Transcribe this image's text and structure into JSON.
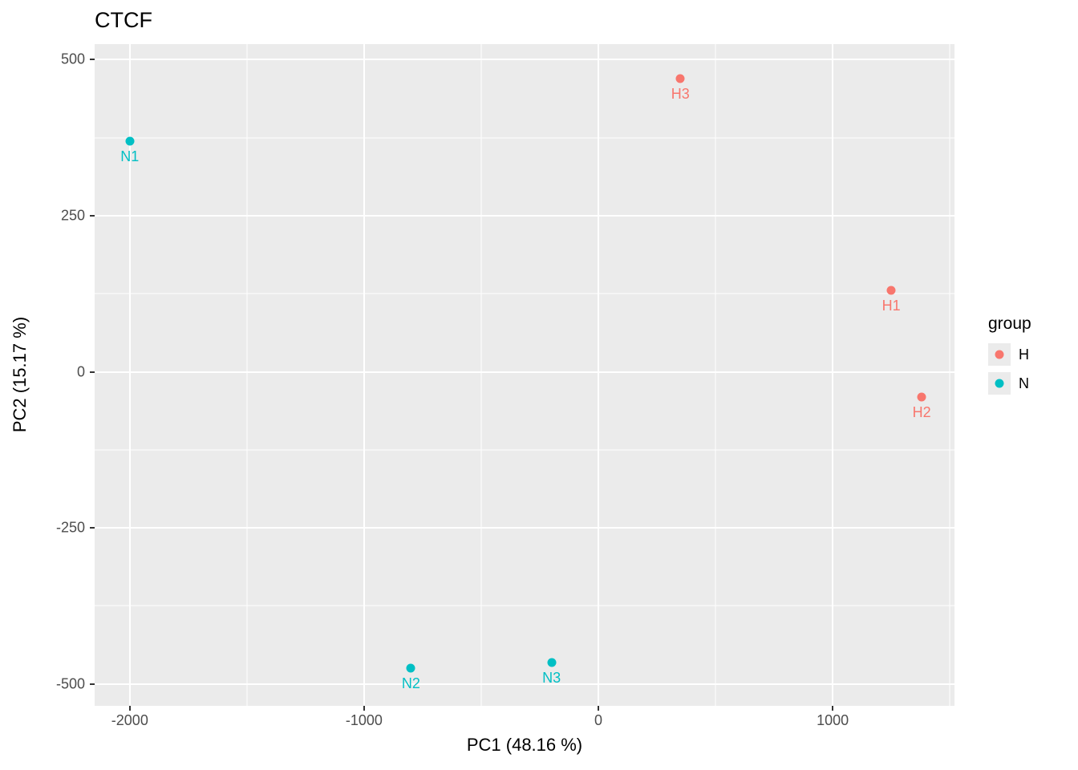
{
  "chart_data": {
    "type": "scatter",
    "title": "CTCF",
    "xlabel": "PC1 (48.16 %)",
    "ylabel": "PC2 (15.17 %)",
    "xlim": [
      -2150,
      1520
    ],
    "ylim": [
      -535,
      525
    ],
    "grid": true,
    "panel_background": "#EBEBEB",
    "gridline_color": "#FFFFFF",
    "x_ticks": [
      {
        "v": -2000,
        "label": "-2000"
      },
      {
        "v": -1000,
        "label": "-1000"
      },
      {
        "v": 0,
        "label": "0"
      },
      {
        "v": 1000,
        "label": "1000"
      }
    ],
    "y_ticks": [
      {
        "v": -500,
        "label": "-500"
      },
      {
        "v": -250,
        "label": "-250"
      },
      {
        "v": 0,
        "label": "0"
      },
      {
        "v": 250,
        "label": "250"
      },
      {
        "v": 500,
        "label": "500"
      }
    ],
    "x_minor_ticks": [
      -1500,
      -500,
      500,
      1500
    ],
    "y_minor_ticks": [
      -375,
      -125,
      125,
      375
    ],
    "legend_title": "group",
    "legend_position": "right",
    "series": [
      {
        "name": "H",
        "color": "#F8766D",
        "points": [
          {
            "label": "H1",
            "x": 1250,
            "y": 130
          },
          {
            "label": "H2",
            "x": 1380,
            "y": -40
          },
          {
            "label": "H3",
            "x": 350,
            "y": 470
          }
        ]
      },
      {
        "name": "N",
        "color": "#00BFC4",
        "points": [
          {
            "label": "N1",
            "x": -2000,
            "y": 370
          },
          {
            "label": "N2",
            "x": -800,
            "y": -475
          },
          {
            "label": "N3",
            "x": -200,
            "y": -465
          }
        ]
      }
    ]
  }
}
